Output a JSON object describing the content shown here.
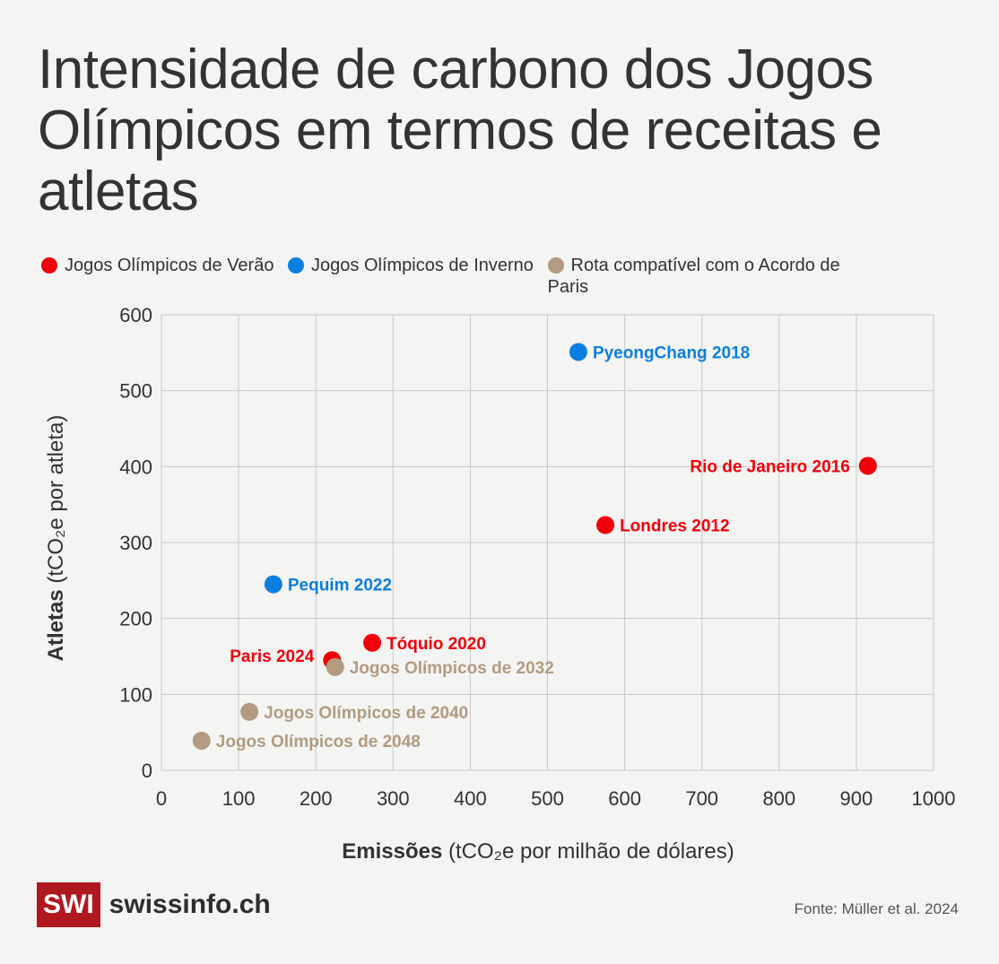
{
  "title": "Intensidade de carbono dos Jogos Olímpicos em termos de receitas e atletas",
  "legend": [
    {
      "label": "Jogos Olímpicos de Verão",
      "color": "#f0000a"
    },
    {
      "label": "Jogos Olímpicos de Inverno",
      "color": "#0a7fe0"
    },
    {
      "label": "Rota compatível com o Acordo de Paris",
      "color": "#b29b80"
    }
  ],
  "chart_data": {
    "type": "scatter",
    "xlabel_bold": "Emissões",
    "xlabel_rest": " (tCO₂e por milhão de dólares)",
    "ylabel_bold": "Atletas",
    "ylabel_rest": " (tCO₂e por atleta)",
    "xlim": [
      0,
      1000
    ],
    "ylim": [
      0,
      600
    ],
    "xticks": [
      0,
      100,
      200,
      300,
      400,
      500,
      600,
      700,
      800,
      900,
      1000
    ],
    "yticks": [
      0,
      100,
      200,
      300,
      400,
      500,
      600
    ],
    "grid": true,
    "legend_position": "top",
    "points": [
      {
        "label": "PyeongChang 2018",
        "x": 540,
        "y": 551,
        "group": "Jogos Olímpicos de Inverno",
        "color": "#0a7fe0",
        "label_side": "right"
      },
      {
        "label": "Rio de Janeiro 2016",
        "x": 915,
        "y": 401,
        "group": "Jogos Olímpicos de Verão",
        "color": "#f0000a",
        "label_side": "left"
      },
      {
        "label": "Londres 2012",
        "x": 575,
        "y": 323,
        "group": "Jogos Olímpicos de Verão",
        "color": "#f0000a",
        "label_side": "right"
      },
      {
        "label": "Pequim 2022",
        "x": 145,
        "y": 245,
        "group": "Jogos Olímpicos de Inverno",
        "color": "#0a7fe0",
        "label_side": "right"
      },
      {
        "label": "Tóquio 2020",
        "x": 273,
        "y": 168,
        "group": "Jogos Olímpicos de Verão",
        "color": "#f0000a",
        "label_side": "right"
      },
      {
        "label": "Paris 2024",
        "x": 221,
        "y": 145,
        "group": "Jogos Olímpicos de Verão",
        "color": "#f0000a",
        "label_side": "left-up"
      },
      {
        "label": "Jogos Olímpicos de 2032",
        "x": 225,
        "y": 136,
        "group": "Rota compatível com o Acordo de Paris",
        "color": "#b29b80",
        "label_side": "right"
      },
      {
        "label": "Jogos Olímpicos de 2040",
        "x": 114,
        "y": 77,
        "group": "Rota compatível com o Acordo de Paris",
        "color": "#b29b80",
        "label_side": "right"
      },
      {
        "label": "Jogos Olímpicos de 2048",
        "x": 52,
        "y": 39,
        "group": "Rota compatível com o Acordo de Paris",
        "color": "#b29b80",
        "label_side": "right"
      }
    ]
  },
  "logo": {
    "mark": "SWI",
    "name": "swissinfo.ch"
  },
  "source": "Fonte: Müller et al. 2024"
}
